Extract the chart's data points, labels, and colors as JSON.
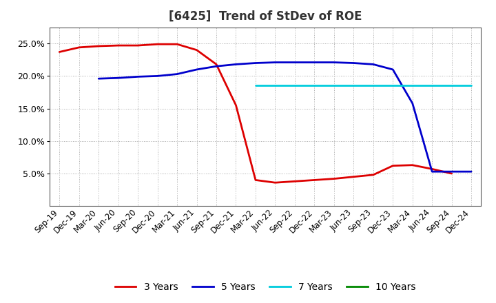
{
  "title": "[6425]  Trend of StDev of ROE",
  "title_fontsize": 12,
  "title_fontweight": "bold",
  "background_color": "#ffffff",
  "plot_bg_color": "#ffffff",
  "grid_color": "#aaaaaa",
  "ylim": [
    0.0,
    0.275
  ],
  "yticks": [
    0.05,
    0.1,
    0.15,
    0.2,
    0.25
  ],
  "ytick_labels": [
    "5.0%",
    "10.0%",
    "15.0%",
    "20.0%",
    "25.0%"
  ],
  "x_labels": [
    "Sep-19",
    "Dec-19",
    "Mar-20",
    "Jun-20",
    "Sep-20",
    "Dec-20",
    "Mar-21",
    "Jun-21",
    "Sep-21",
    "Dec-21",
    "Mar-22",
    "Jun-22",
    "Sep-22",
    "Dec-22",
    "Mar-23",
    "Jun-23",
    "Sep-23",
    "Dec-23",
    "Mar-24",
    "Jun-24",
    "Sep-24",
    "Dec-24"
  ],
  "series": {
    "3yr": {
      "color": "#dd0000",
      "label": "3 Years",
      "linewidth": 2.0,
      "x": [
        0,
        1,
        2,
        3,
        4,
        5,
        6,
        7,
        8,
        9,
        10,
        11,
        12,
        13,
        14,
        15,
        16,
        17,
        18,
        19,
        20
      ],
      "y": [
        0.237,
        0.244,
        0.246,
        0.247,
        0.247,
        0.249,
        0.249,
        0.24,
        0.218,
        0.155,
        0.04,
        0.036,
        0.038,
        0.04,
        0.042,
        0.045,
        0.048,
        0.062,
        0.063,
        0.057,
        0.05
      ]
    },
    "5yr": {
      "color": "#0000cc",
      "label": "5 Years",
      "linewidth": 2.0,
      "x": [
        2,
        3,
        4,
        5,
        6,
        7,
        8,
        9,
        10,
        11,
        12,
        13,
        14,
        15,
        16,
        17,
        18,
        19,
        20,
        21
      ],
      "y": [
        0.196,
        0.197,
        0.199,
        0.2,
        0.203,
        0.21,
        0.215,
        0.218,
        0.22,
        0.221,
        0.221,
        0.221,
        0.221,
        0.22,
        0.218,
        0.21,
        0.158,
        0.053,
        0.053,
        0.053
      ]
    },
    "7yr": {
      "color": "#00ccdd",
      "label": "7 Years",
      "linewidth": 2.0,
      "x": [
        10,
        11,
        12,
        13,
        14,
        15,
        16,
        17,
        18,
        19,
        20,
        21
      ],
      "y": [
        0.186,
        0.186,
        0.186,
        0.186,
        0.186,
        0.186,
        0.186,
        0.186,
        0.186,
        0.186,
        0.186,
        0.186
      ]
    },
    "10yr": {
      "color": "#008800",
      "label": "10 Years",
      "linewidth": 2.0,
      "x": [],
      "y": []
    }
  },
  "legend_fontsize": 10,
  "legend_ncol": 4,
  "tick_fontsize": 8.5,
  "ytick_fontsize": 9
}
